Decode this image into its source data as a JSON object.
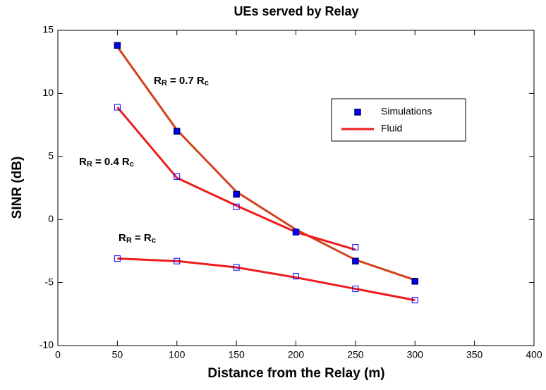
{
  "chart_data": {
    "type": "line",
    "title": "UEs served by Relay",
    "xlabel": "Distance from the Relay (m)",
    "ylabel": "SINR (dB)",
    "x": [
      50,
      100,
      150,
      200,
      250,
      300
    ],
    "series": [
      {
        "name": "Simulations",
        "color": "#0000ff",
        "marker": "filled-square",
        "values": [
          13.8,
          7.0,
          2.0,
          -1.0,
          -3.3,
          -4.9
        ]
      },
      {
        "color": "#0000ff",
        "marker": "open-square",
        "values": [
          8.9,
          3.4,
          1.0,
          -1.0,
          -2.2,
          null
        ]
      },
      {
        "color": "#0000ff",
        "marker": "open-square",
        "values": [
          -3.1,
          -3.3,
          -3.8,
          -4.5,
          -5.5,
          -6.4
        ]
      },
      {
        "name": "Fluid",
        "color": "#ee1c1c",
        "values": [
          13.7,
          7.1,
          2.2,
          -0.8,
          -3.2,
          -4.8
        ]
      },
      {
        "color": "#ee1c1c",
        "values": [
          8.9,
          3.3,
          1.1,
          -1.0,
          -2.4,
          null
        ]
      },
      {
        "color": "#ee1c1c",
        "values": [
          -3.1,
          -3.3,
          -3.8,
          -4.6,
          -5.5,
          -6.4
        ]
      }
    ],
    "annotations": [
      [
        "R",
        "R",
        " = 0.7 R",
        "c"
      ],
      [
        "R",
        "R",
        " = 0.4 R",
        "c"
      ],
      [
        "R",
        "R",
        " = R",
        "c"
      ]
    ],
    "xlim": [
      0,
      400
    ],
    "xticks": [
      0,
      50,
      100,
      150,
      200,
      250,
      300,
      350,
      400
    ],
    "ylim": [
      -10,
      15
    ],
    "yticks": [
      -10,
      -5,
      0,
      5,
      10,
      15
    ],
    "legend": "upper-right",
    "grid": false
  }
}
